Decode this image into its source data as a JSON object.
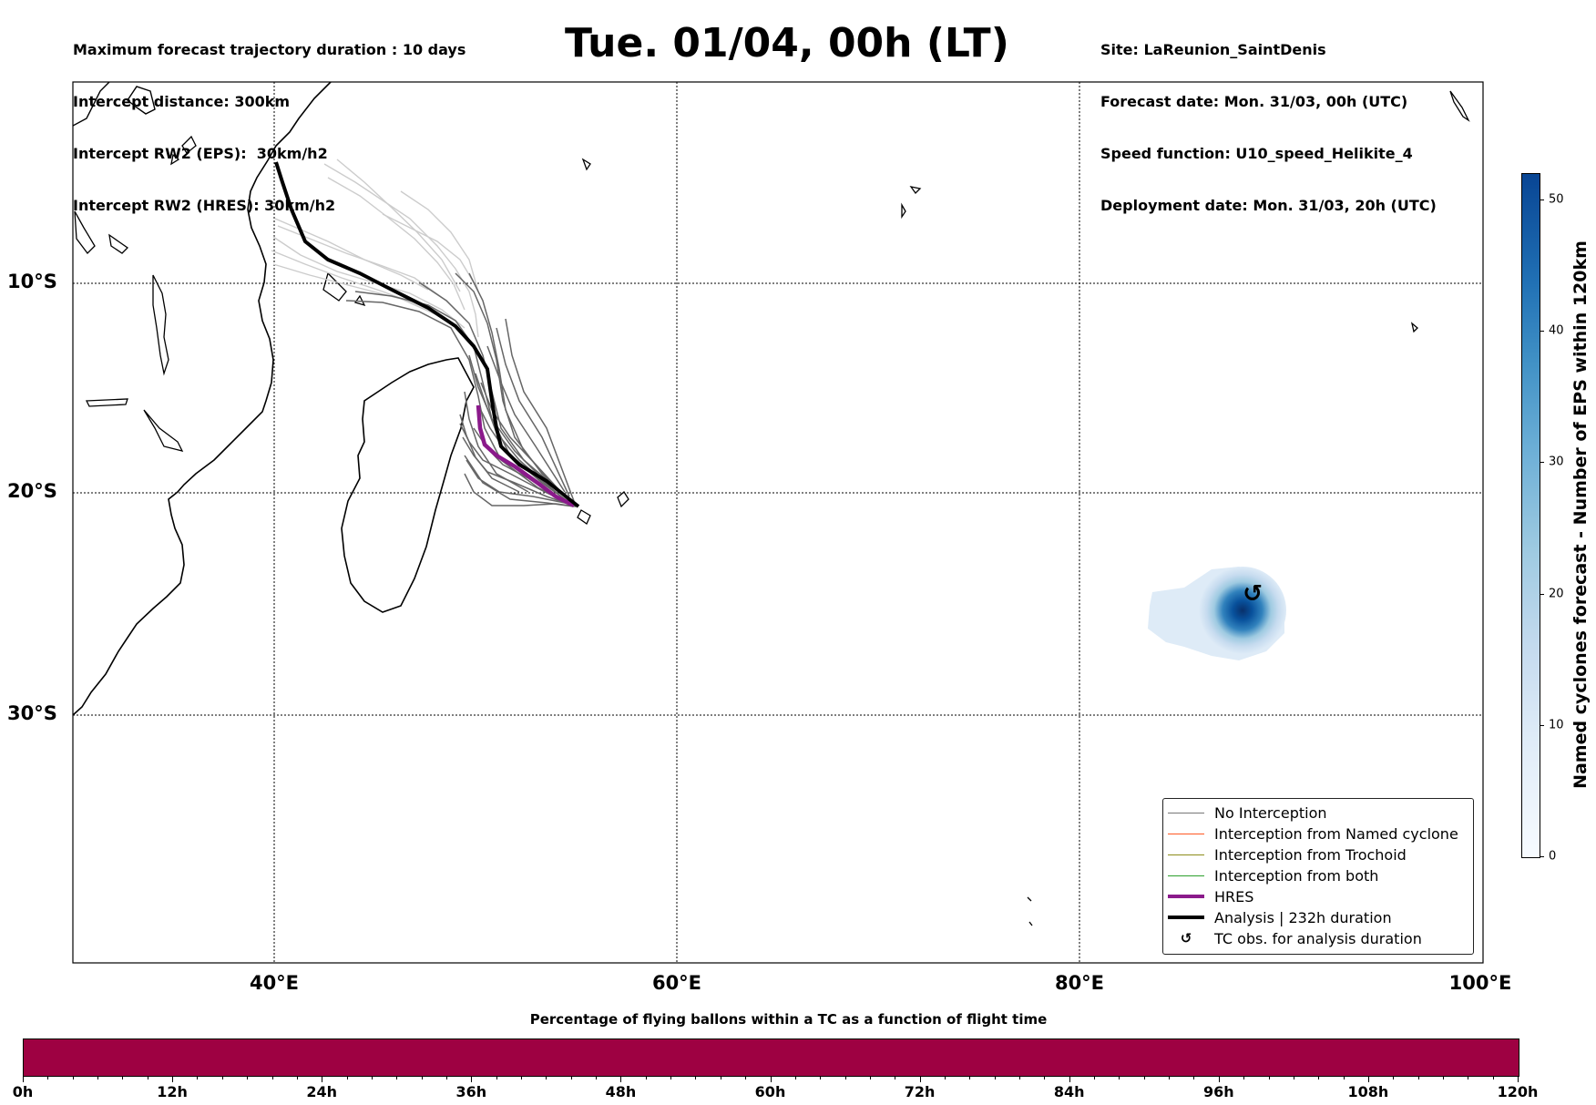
{
  "header": {
    "left_lines": [
      "Maximum forecast trajectory duration : 10 days",
      "Intercept distance: 300km",
      "Intercept RW2 (EPS):  30km/h2",
      "Intercept RW2 (HRES): 30km/h2"
    ],
    "title": "Tue. 01/04, 00h (LT)",
    "right_lines": [
      "Site: LaReunion_SaintDenis",
      "Forecast date: Mon. 31/03, 00h (UTC)",
      "Speed function: U10_speed_Helikite_4",
      "Deployment date: Mon. 31/03, 20h (UTC)"
    ]
  },
  "map": {
    "lat_labels": [
      "10°S",
      "20°S",
      "30°S"
    ],
    "lon_labels": [
      "40°E",
      "60°E",
      "80°E",
      "100°E"
    ],
    "colors": {
      "eps_track": "#666666",
      "eps_faded": "#c8c8c8",
      "hres": "#8b1a8b",
      "analysis": "#000000",
      "cyclone": "#08519c"
    }
  },
  "legend": {
    "items": [
      {
        "label": "No Interception",
        "color": "#777777",
        "style": "thin"
      },
      {
        "label": "Interception from Named cyclone",
        "color": "#ff5722",
        "style": "thin"
      },
      {
        "label": "Interception from Trochoid",
        "color": "#8c8c1a",
        "style": "thin"
      },
      {
        "label": "Interception from both",
        "color": "#2ca02c",
        "style": "thin"
      },
      {
        "label": "HRES",
        "color": "#8b1a8b",
        "style": "thick"
      },
      {
        "label": "Analysis | 232h duration",
        "color": "#000000",
        "style": "thick"
      },
      {
        "label": "TC obs. for analysis duration",
        "color": "#000000",
        "style": "symbol",
        "symbol": "↺"
      }
    ]
  },
  "colorbar": {
    "title": "Named cyclones forecast - Number of EPS within 120km",
    "ticks": [
      "0",
      "10",
      "20",
      "30",
      "40",
      "50"
    ],
    "min": 0,
    "max": 52
  },
  "bottom": {
    "title": "Percentage of flying ballons within a TC as a function of flight time",
    "bar_color": "#9e0142",
    "ticks": [
      "0h",
      "12h",
      "24h",
      "36h",
      "48h",
      "60h",
      "72h",
      "84h",
      "96h",
      "108h",
      "120h"
    ]
  }
}
